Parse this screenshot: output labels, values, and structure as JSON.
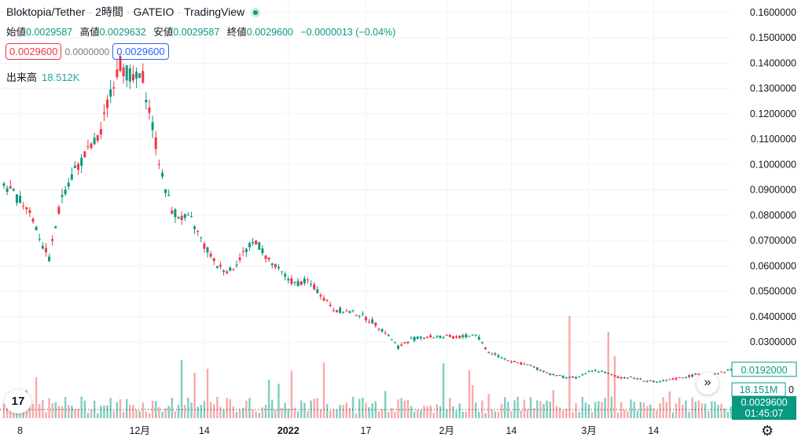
{
  "header": {
    "symbol": "Bloktopia/Tether",
    "interval": "2時間",
    "exchange": "GATEIO",
    "platform": "TradingView"
  },
  "ohlc": {
    "open_label": "始値",
    "open": "0.0029587",
    "high_label": "高値",
    "high": "0.0029632",
    "low_label": "安値",
    "low": "0.0029587",
    "close_label": "終値",
    "close": "0.0029600",
    "change": "−0.0000013 (−0.04%)"
  },
  "price_boxes": {
    "sell": "0.0029600",
    "spread": "0.0000000",
    "buy": "0.0029600"
  },
  "volume": {
    "label": "出来高",
    "value": "18.512K"
  },
  "logo": "17",
  "colors": {
    "up": "#089981",
    "down": "#f23645",
    "vol_up": "#7fcdbf",
    "vol_down": "#f7a9a9",
    "grid": "#f0f3fa",
    "axis_text": "#131722"
  },
  "chart_data": {
    "type": "candlestick",
    "y_axis": {
      "min": 0,
      "max": 0.16,
      "ticks": [
        "0.1600000",
        "0.1500000",
        "0.1400000",
        "0.1300000",
        "0.1200000",
        "0.1100000",
        "0.1000000",
        "0.0900000",
        "0.0800000",
        "0.0700000",
        "0.0600000",
        "0.0500000",
        "0.0400000",
        "0.0300000"
      ],
      "tick_values": [
        0.16,
        0.15,
        0.14,
        0.13,
        0.12,
        0.11,
        0.1,
        0.09,
        0.08,
        0.07,
        0.06,
        0.05,
        0.04,
        0.03
      ]
    },
    "x_axis": {
      "labels": [
        "8",
        "12月",
        "14",
        "2022",
        "17",
        "2月",
        "14",
        "3月",
        "14"
      ],
      "label_index": [
        5,
        42,
        62,
        88,
        112,
        137,
        157,
        181,
        201
      ],
      "total_periods": 226
    },
    "price_path": [
      [
        0,
        0.092
      ],
      [
        4,
        0.087
      ],
      [
        8,
        0.082
      ],
      [
        12,
        0.068
      ],
      [
        14,
        0.063
      ],
      [
        18,
        0.088
      ],
      [
        22,
        0.098
      ],
      [
        26,
        0.105
      ],
      [
        30,
        0.112
      ],
      [
        33,
        0.13
      ],
      [
        36,
        0.14
      ],
      [
        40,
        0.133
      ],
      [
        43,
        0.134
      ],
      [
        46,
        0.115
      ],
      [
        49,
        0.095
      ],
      [
        52,
        0.082
      ],
      [
        55,
        0.079
      ],
      [
        58,
        0.078
      ],
      [
        62,
        0.068
      ],
      [
        66,
        0.06
      ],
      [
        70,
        0.058
      ],
      [
        74,
        0.065
      ],
      [
        78,
        0.07
      ],
      [
        82,
        0.062
      ],
      [
        86,
        0.057
      ],
      [
        90,
        0.053
      ],
      [
        94,
        0.054
      ],
      [
        98,
        0.049
      ],
      [
        102,
        0.043
      ],
      [
        106,
        0.042
      ],
      [
        110,
        0.041
      ],
      [
        114,
        0.038
      ],
      [
        118,
        0.034
      ],
      [
        122,
        0.028
      ],
      [
        126,
        0.031
      ],
      [
        130,
        0.032
      ],
      [
        134,
        0.032
      ],
      [
        138,
        0.032
      ],
      [
        142,
        0.032
      ],
      [
        146,
        0.033
      ],
      [
        150,
        0.026
      ],
      [
        154,
        0.024
      ],
      [
        158,
        0.022
      ],
      [
        162,
        0.021
      ],
      [
        166,
        0.019
      ],
      [
        170,
        0.017
      ],
      [
        174,
        0.016
      ],
      [
        178,
        0.016
      ],
      [
        182,
        0.019
      ],
      [
        186,
        0.018
      ],
      [
        190,
        0.016
      ],
      [
        194,
        0.016
      ],
      [
        198,
        0.015
      ],
      [
        202,
        0.014
      ],
      [
        206,
        0.015
      ],
      [
        210,
        0.016
      ],
      [
        214,
        0.017
      ],
      [
        218,
        0.017
      ],
      [
        222,
        0.018
      ],
      [
        225,
        0.019
      ]
    ],
    "last_price": {
      "label": "0.0192000",
      "value": 0.0192
    },
    "volume_axis_label": "18.151M",
    "current_price_label": "0.0029600",
    "countdown": "01:45:07",
    "zero_label": "0"
  }
}
